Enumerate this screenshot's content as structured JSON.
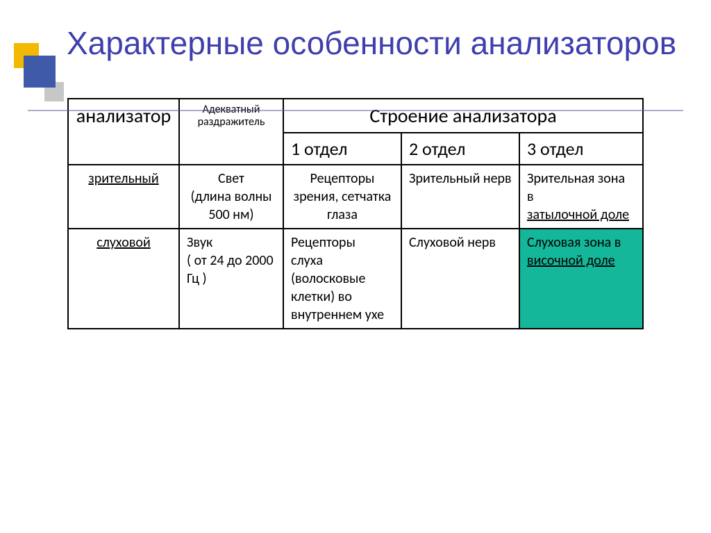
{
  "colors": {
    "title": "#3f3fae",
    "deco_blue": "#3f5aa8",
    "deco_gold": "#f2b900",
    "deco_grey": "#c7c7c7",
    "border": "#000000",
    "highlight_bg": "#14b79a",
    "page_bg": "#ffffff"
  },
  "title": "Характерные особенности анализаторов",
  "table": {
    "headers": {
      "analyzer": "анализатор",
      "stimulus": "Адекватный раздражитель",
      "structure": "Строение анализатора",
      "section1": "1 отдел",
      "section2": "2 отдел",
      "section3": "3 отдел"
    },
    "rows": [
      {
        "analyzer": "зрительный",
        "analyzer_underlined": true,
        "stimulus_lines": [
          "Свет",
          "(длина волны",
          "500 нм)"
        ],
        "s1_lines": [
          "Рецепторы зрения, сетчатка глаза"
        ],
        "s2_lines": [
          "Зрительный нерв"
        ],
        "s3_plain": "Зрительная зона",
        "s3_plain2": "в",
        "s3_underlined": "затылочной доле",
        "s3_highlight": false
      },
      {
        "analyzer": "слуховой",
        "analyzer_underlined": true,
        "stimulus_lines": [
          "Звук",
          "( от 24 до 2000 Гц )"
        ],
        "s1_lines": [
          "Рецепторы",
          "слуха (волосковые клетки) во внутреннем ухе"
        ],
        "s2_lines": [
          "Слуховой нерв"
        ],
        "s3_plain": "Слуховая зона в",
        "s3_plain2": "",
        "s3_underlined": "височной доле",
        "s3_highlight": true
      }
    ]
  }
}
